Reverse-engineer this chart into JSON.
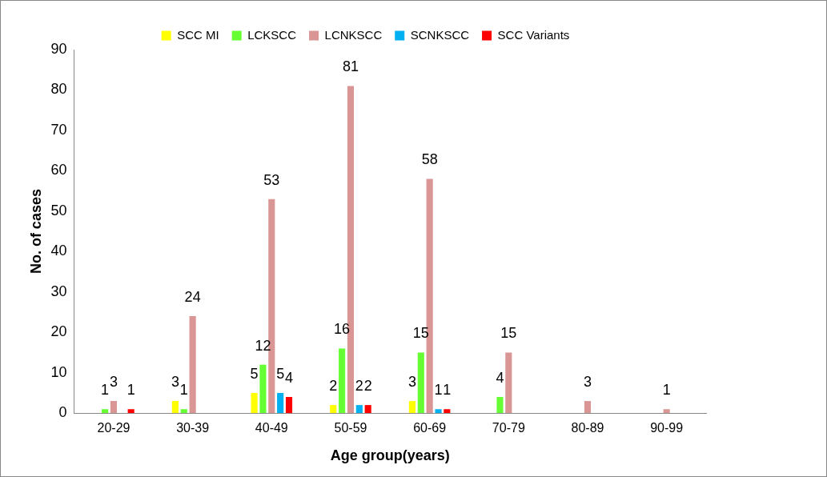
{
  "chart_data": {
    "type": "bar",
    "xlabel": "Age group(years)",
    "ylabel": "No. of cases",
    "categories": [
      "20-29",
      "30-39",
      "40-49",
      "50-59",
      "60-69",
      "70-79",
      "80-89",
      "90-99"
    ],
    "series": [
      {
        "name": "SCC MI",
        "color": "#ffff00",
        "values": [
          null,
          3,
          5,
          2,
          3,
          null,
          null,
          null
        ]
      },
      {
        "name": "LCKSCC",
        "color": "#66ff33",
        "values": [
          1,
          1,
          12,
          16,
          15,
          4,
          null,
          null
        ]
      },
      {
        "name": "LCNKSCC",
        "color": "#d99694",
        "values": [
          3,
          24,
          53,
          81,
          58,
          15,
          3,
          1
        ]
      },
      {
        "name": "SCNKSCC",
        "color": "#00b0f0",
        "values": [
          null,
          null,
          5,
          2,
          1,
          null,
          null,
          null
        ]
      },
      {
        "name": "SCC Variants",
        "color": "#ff0000",
        "values": [
          1,
          null,
          4,
          2,
          1,
          null,
          null,
          null
        ]
      }
    ],
    "ylim": [
      0,
      90
    ],
    "yticks": [
      0,
      10,
      20,
      30,
      40,
      50,
      60,
      70,
      80,
      90
    ],
    "grid": false,
    "legend": "top",
    "data_labels": true
  }
}
